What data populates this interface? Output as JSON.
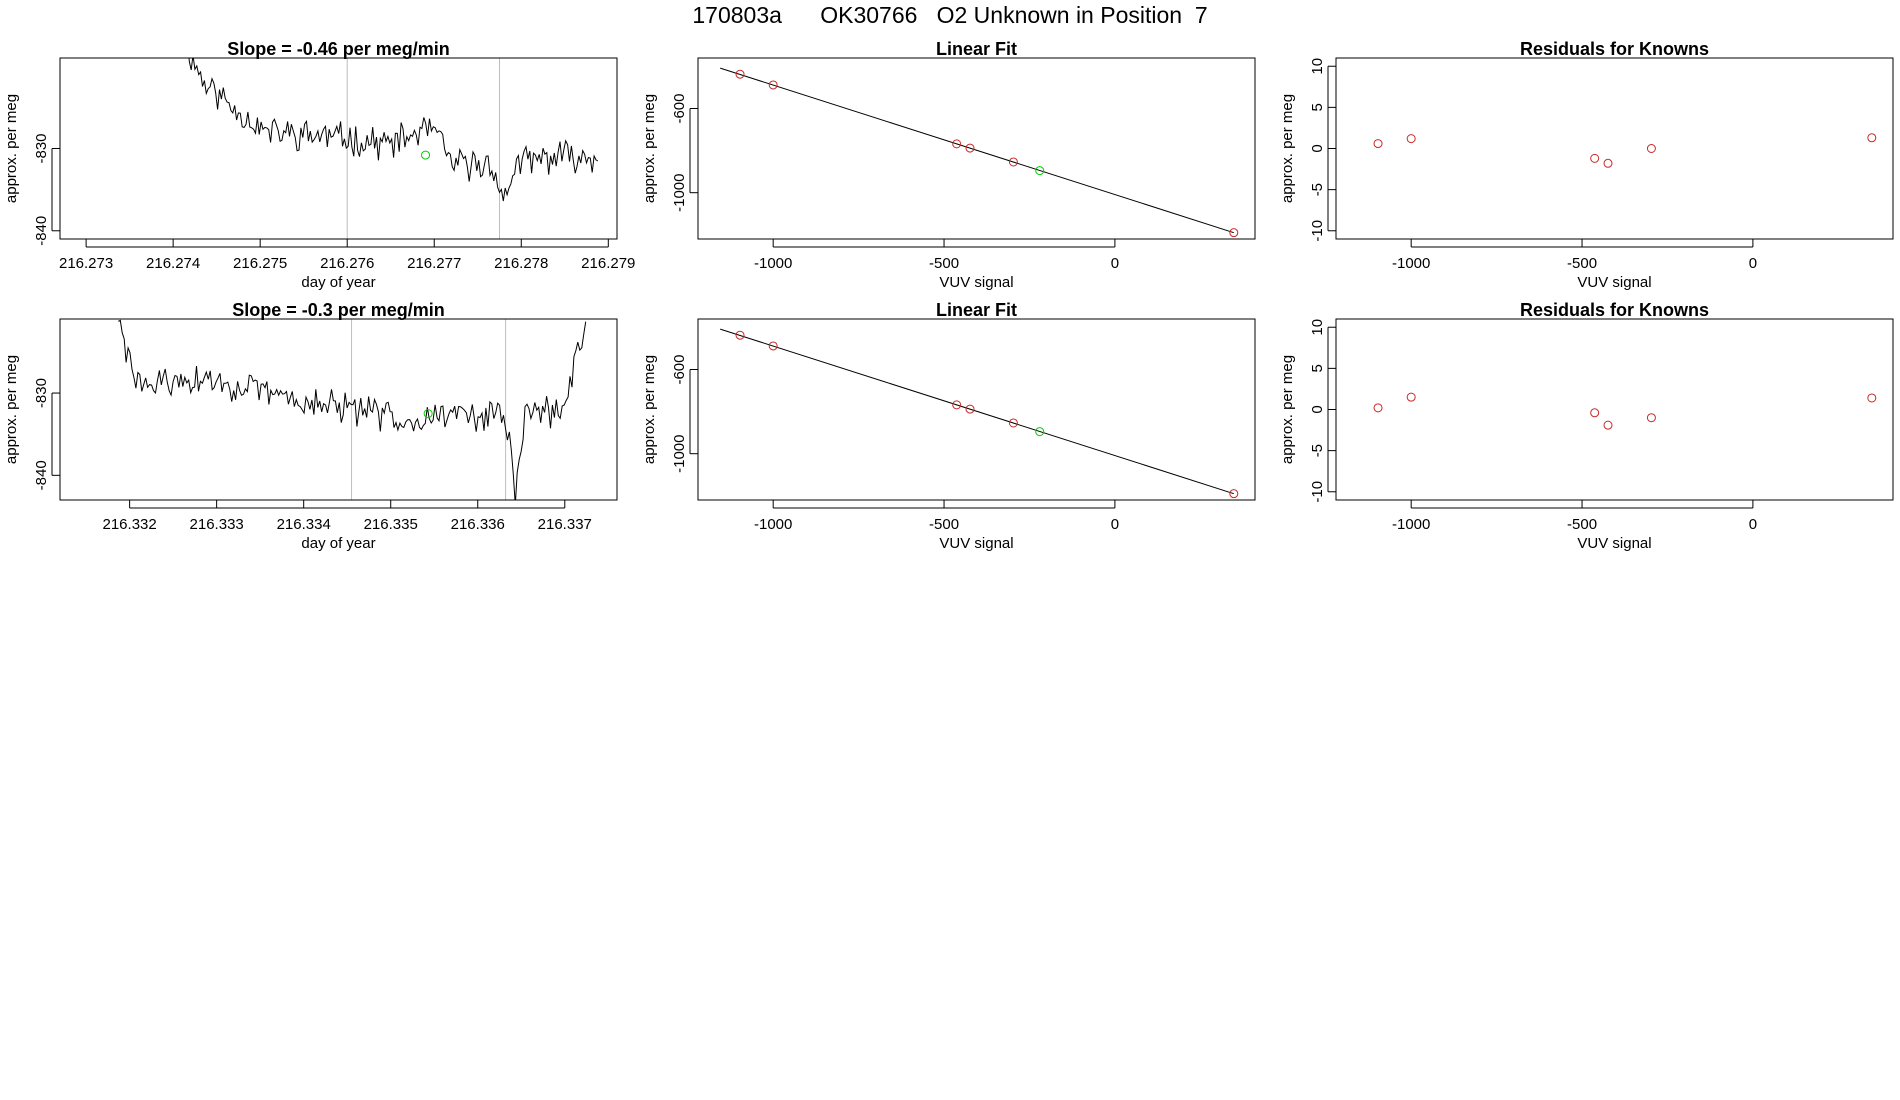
{
  "figure": {
    "title": "170803a      OK30766   O2 Unknown in Position  7"
  },
  "colors": {
    "line": "#000000",
    "known": "#cd2626",
    "unknown": "#00cd00",
    "guide": "#bebebe",
    "fit": "#000000"
  },
  "chart_data": [
    {
      "id": "ts1",
      "type": "line",
      "title": "Slope =  -0.46  per meg/min",
      "xlabel": "day of year",
      "ylabel": "approx. per meg",
      "xlim": [
        216.2727,
        216.2791
      ],
      "ylim": [
        -841,
        -819
      ],
      "xticks": [
        216.273,
        216.274,
        216.275,
        216.276,
        216.277,
        216.278,
        216.279
      ],
      "xtick_labels": [
        "216.273",
        "216.274",
        "216.275",
        "216.276",
        "216.277",
        "216.278",
        "216.279"
      ],
      "yticks": [
        -840,
        -830
      ],
      "ytick_labels": [
        "-840",
        "-830"
      ],
      "vlines": [
        216.276,
        216.27775
      ],
      "highlight": {
        "x": 216.2769,
        "y": -830.8
      },
      "x_start": 216.27412,
      "x_end": 216.27888,
      "n": 220,
      "seed": 11,
      "anchors": [
        [
          0,
          -817
        ],
        [
          0.05,
          -822
        ],
        [
          0.12,
          -825
        ],
        [
          0.2,
          -828
        ],
        [
          0.35,
          -828.5
        ],
        [
          0.5,
          -829.5
        ],
        [
          0.6,
          -827.5
        ],
        [
          0.65,
          -832
        ],
        [
          0.75,
          -832
        ],
        [
          0.77,
          -837
        ],
        [
          0.8,
          -832
        ],
        [
          0.9,
          -831
        ],
        [
          1.0,
          -831
        ]
      ],
      "noise": 1.6
    },
    {
      "id": "fit1",
      "type": "scatter",
      "title": "Linear Fit",
      "xlabel": "VUV signal",
      "ylabel": "approx. per meg",
      "xlim": [
        -1220,
        410
      ],
      "ylim": [
        -1220,
        -360
      ],
      "xticks": [
        -1000,
        -500,
        0
      ],
      "xtick_labels": [
        "-1000",
        "-500",
        "0"
      ],
      "yticks": [
        -1000,
        -600
      ],
      "ytick_labels": [
        "-1000",
        "-600"
      ],
      "fit_line": {
        "x": [
          -1155,
          348
        ],
        "y": [
          -408,
          -1190
        ]
      },
      "points": [
        {
          "x": -1097,
          "y": -437,
          "kind": "known"
        },
        {
          "x": -1000,
          "y": -488,
          "kind": "known"
        },
        {
          "x": -463,
          "y": -768,
          "kind": "known"
        },
        {
          "x": -424,
          "y": -788,
          "kind": "known"
        },
        {
          "x": -297,
          "y": -854,
          "kind": "known"
        },
        {
          "x": -220,
          "y": -895,
          "kind": "unknown"
        },
        {
          "x": 348,
          "y": -1190,
          "kind": "known"
        }
      ]
    },
    {
      "id": "res1",
      "type": "scatter",
      "title": "Residuals for Knowns",
      "xlabel": "VUV signal",
      "ylabel": "approx. per meg",
      "xlim": [
        -1220,
        410
      ],
      "ylim": [
        -11,
        11
      ],
      "xticks": [
        -1000,
        -500,
        0
      ],
      "xtick_labels": [
        "-1000",
        "-500",
        "0"
      ],
      "yticks": [
        -10,
        -5,
        0,
        5,
        10
      ],
      "ytick_labels": [
        "-10",
        "-5",
        "0",
        "5",
        "10"
      ],
      "points": [
        {
          "x": -1097,
          "y": 0.6,
          "kind": "known"
        },
        {
          "x": -1000,
          "y": 1.2,
          "kind": "known"
        },
        {
          "x": -463,
          "y": -1.2,
          "kind": "known"
        },
        {
          "x": -424,
          "y": -1.8,
          "kind": "known"
        },
        {
          "x": -297,
          "y": 0.0,
          "kind": "known"
        },
        {
          "x": 348,
          "y": 1.3,
          "kind": "known"
        }
      ]
    },
    {
      "id": "ts2",
      "type": "line",
      "title": "Slope =  -0.3  per meg/min",
      "xlabel": "day of year",
      "ylabel": "approx. per meg",
      "xlim": [
        216.3312,
        216.3376
      ],
      "ylim": [
        -843,
        -821
      ],
      "xticks": [
        216.332,
        216.333,
        216.334,
        216.335,
        216.336,
        216.337
      ],
      "xtick_labels": [
        "216.332",
        "216.333",
        "216.334",
        "216.335",
        "216.336",
        "216.337"
      ],
      "yticks": [
        -840,
        -830
      ],
      "ytick_labels": [
        "-840",
        "-830"
      ],
      "vlines": [
        216.33455,
        216.33632
      ],
      "highlight": {
        "x": 216.33543,
        "y": -832.5
      },
      "x_start": 216.33187,
      "x_end": 216.33724,
      "n": 240,
      "seed": 29,
      "anchors": [
        [
          0,
          -821
        ],
        [
          0.02,
          -826
        ],
        [
          0.05,
          -829
        ],
        [
          0.2,
          -828.5
        ],
        [
          0.35,
          -830.5
        ],
        [
          0.5,
          -832
        ],
        [
          0.6,
          -833
        ],
        [
          0.75,
          -832.5
        ],
        [
          0.83,
          -833
        ],
        [
          0.85,
          -843
        ],
        [
          0.87,
          -832
        ],
        [
          0.95,
          -832.5
        ],
        [
          0.98,
          -826
        ],
        [
          1.0,
          -821
        ]
      ],
      "noise": 1.6
    },
    {
      "id": "fit2",
      "type": "scatter",
      "title": "Linear Fit",
      "xlabel": "VUV signal",
      "ylabel": "approx. per meg",
      "xlim": [
        -1220,
        410
      ],
      "ylim": [
        -1220,
        -360
      ],
      "xticks": [
        -1000,
        -500,
        0
      ],
      "xtick_labels": [
        "-1000",
        "-500",
        "0"
      ],
      "yticks": [
        -1000,
        -600
      ],
      "ytick_labels": [
        "-1000",
        "-600"
      ],
      "fit_line": {
        "x": [
          -1155,
          348
        ],
        "y": [
          -408,
          -1190
        ]
      },
      "points": [
        {
          "x": -1097,
          "y": -437,
          "kind": "known"
        },
        {
          "x": -1000,
          "y": -488,
          "kind": "known"
        },
        {
          "x": -463,
          "y": -768,
          "kind": "known"
        },
        {
          "x": -424,
          "y": -788,
          "kind": "known"
        },
        {
          "x": -297,
          "y": -854,
          "kind": "known"
        },
        {
          "x": -220,
          "y": -895,
          "kind": "unknown"
        },
        {
          "x": 348,
          "y": -1190,
          "kind": "known"
        }
      ]
    },
    {
      "id": "res2",
      "type": "scatter",
      "title": "Residuals for Knowns",
      "xlabel": "VUV signal",
      "ylabel": "approx. per meg",
      "xlim": [
        -1220,
        410
      ],
      "ylim": [
        -11,
        11
      ],
      "xticks": [
        -1000,
        -500,
        0
      ],
      "xtick_labels": [
        "-1000",
        "-500",
        "0"
      ],
      "yticks": [
        -10,
        -5,
        0,
        5,
        10
      ],
      "ytick_labels": [
        "-10",
        "-5",
        "0",
        "5",
        "10"
      ],
      "points": [
        {
          "x": -1097,
          "y": 0.2,
          "kind": "known"
        },
        {
          "x": -1000,
          "y": 1.5,
          "kind": "known"
        },
        {
          "x": -463,
          "y": -0.4,
          "kind": "known"
        },
        {
          "x": -424,
          "y": -1.9,
          "kind": "known"
        },
        {
          "x": -297,
          "y": -1.0,
          "kind": "known"
        },
        {
          "x": 348,
          "y": 1.4,
          "kind": "known"
        }
      ]
    }
  ]
}
